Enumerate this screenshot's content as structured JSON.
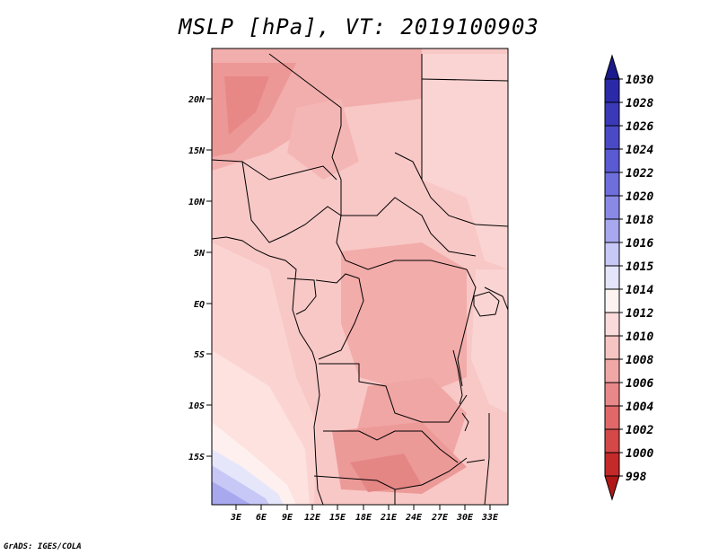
{
  "title": "MSLP [hPa], VT: 2019100903",
  "credit": "GrADS: IGES/COLA",
  "map": {
    "lat_ticks": [
      "20N",
      "15N",
      "10N",
      "5N",
      "EQ",
      "5S",
      "10S",
      "15S"
    ],
    "lon_ticks": [
      "3E",
      "6E",
      "9E",
      "12E",
      "15E",
      "18E",
      "21E",
      "24E",
      "27E",
      "30E",
      "33E"
    ]
  },
  "colorbar": {
    "levels": [
      "1030",
      "1028",
      "1026",
      "1024",
      "1022",
      "1020",
      "1018",
      "1016",
      "1015",
      "1014",
      "1012",
      "1010",
      "1008",
      "1006",
      "1004",
      "1002",
      "1000",
      "998"
    ],
    "colors": [
      "#1a1a8c",
      "#2a2aa8",
      "#3a3ab8",
      "#4a4ac6",
      "#5a5ad2",
      "#6e6edc",
      "#8a8ae6",
      "#a8a8ef",
      "#c8c8f6",
      "#e4e4fa",
      "#fdf4f2",
      "#fadada",
      "#f6c4c2",
      "#f0a8a6",
      "#e88888",
      "#e06868",
      "#d44848",
      "#c42a2a",
      "#b01818"
    ]
  }
}
